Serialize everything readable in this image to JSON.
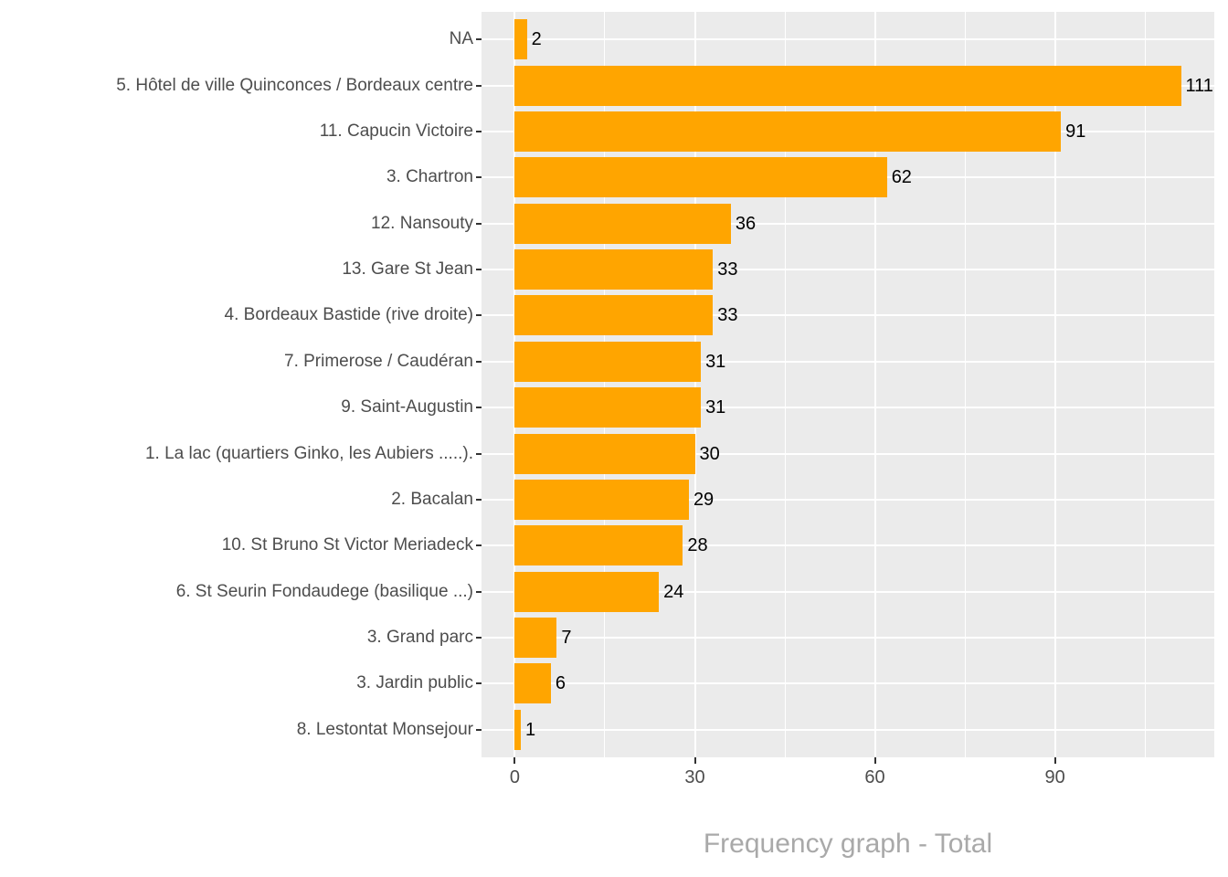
{
  "chart_data": {
    "type": "bar",
    "orientation": "horizontal",
    "title": "Frequency graph - Total",
    "categories": [
      "NA",
      "5. Hôtel de ville Quinconces / Bordeaux centre",
      "11. Capucin Victoire",
      "3. Chartron",
      "12. Nansouty",
      "13. Gare St Jean",
      "4. Bordeaux Bastide (rive droite)",
      "7. Primerose / Caudéran",
      "9. Saint-Augustin",
      "1. La lac (quartiers Ginko, les Aubiers .....).",
      "2. Bacalan",
      "10. St Bruno St Victor Meriadeck",
      "6. St Seurin Fondaudege (basilique ...)",
      "3. Grand parc",
      "3. Jardin public",
      "8. Lestontat Monsejour"
    ],
    "values": [
      2,
      111,
      91,
      62,
      36,
      33,
      33,
      31,
      31,
      30,
      29,
      28,
      24,
      7,
      6,
      1
    ],
    "x_ticks": [
      0,
      30,
      60,
      90
    ],
    "x_minor_ticks": [
      15,
      45,
      75,
      105
    ],
    "xlim": [
      -5.55,
      116.55
    ],
    "grid": true,
    "legend": "none",
    "colors": {
      "bar": "#FFA500",
      "panel_background": "#EBEBEB",
      "gridline": "#FFFFFF",
      "axis_text": "#4D4D4D",
      "tick_mark": "#333333",
      "value_label": "#000000",
      "title_text": "#A9A9A9"
    }
  }
}
